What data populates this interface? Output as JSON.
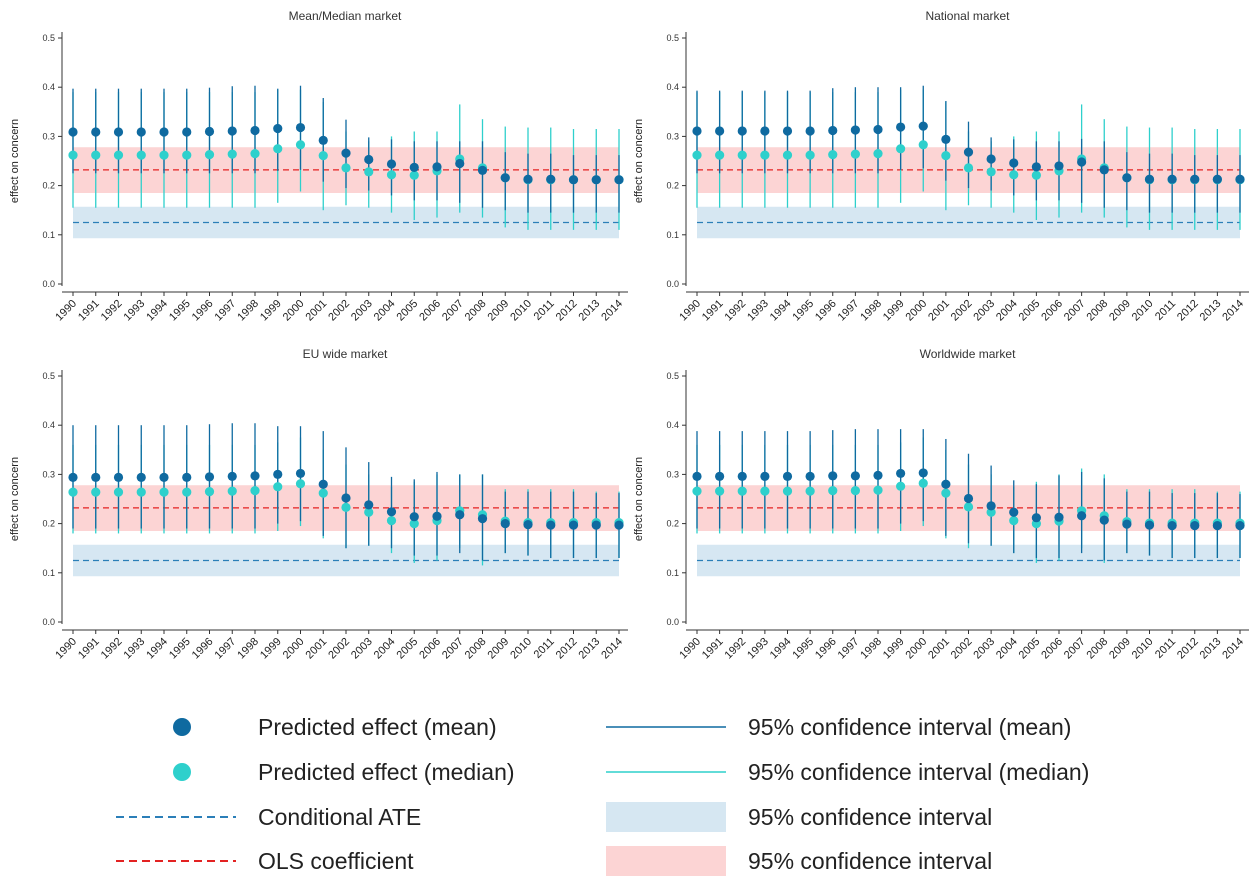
{
  "legend": {
    "mean_point": "Predicted effect (mean)",
    "median_point": "Predicted effect (median)",
    "ate_line": "Conditional ATE",
    "ols_line": "OLS coefficient",
    "ci_mean": "95% confidence interval (mean)",
    "ci_median": "95% confidence interval (median)",
    "ci_ate_band": "95% confidence interval",
    "ci_ols_band": "95% confidence interval"
  },
  "colors": {
    "mean": "#0f6aa0",
    "median": "#2ed0cc",
    "ate": "#2b7fb8",
    "ols": "#e32222",
    "ate_band": "#d6e7f2",
    "ols_band": "#fcd4d4"
  },
  "chart_data": [
    {
      "type": "scatter",
      "title": "Mean/Median market",
      "ylabel": "effect on concern",
      "ylim": [
        0,
        0.5
      ],
      "yticks": [
        0.0,
        0.1,
        0.2,
        0.3,
        0.4,
        0.5
      ],
      "ytick_labels": [
        "0.0",
        "0.1",
        "0.2",
        "0.3",
        "0.4",
        "0.5"
      ],
      "x": [
        "1990",
        "1991",
        "1992",
        "1993",
        "1994",
        "1995",
        "1996",
        "1997",
        "1998",
        "1999",
        "2000",
        "2001",
        "2002",
        "2003",
        "2004",
        "2005",
        "2006",
        "2007",
        "2008",
        "2009",
        "2010",
        "2011",
        "2012",
        "2013",
        "2014"
      ],
      "ate": {
        "value": 0.125,
        "ci": [
          0.093,
          0.157
        ]
      },
      "ols": {
        "value": 0.232,
        "ci": [
          0.185,
          0.278
        ]
      },
      "series": [
        {
          "name": "Predicted effect (mean)",
          "values": [
            0.309,
            0.309,
            0.309,
            0.309,
            0.309,
            0.309,
            0.31,
            0.311,
            0.312,
            0.316,
            0.318,
            0.292,
            0.266,
            0.253,
            0.244,
            0.237,
            0.238,
            0.245,
            0.231,
            0.216,
            0.213,
            0.213,
            0.212,
            0.212,
            0.212
          ],
          "ci_low": [
            0.225,
            0.225,
            0.225,
            0.225,
            0.225,
            0.225,
            0.225,
            0.225,
            0.225,
            0.23,
            0.232,
            0.208,
            0.195,
            0.19,
            0.18,
            0.17,
            0.17,
            0.165,
            0.155,
            0.15,
            0.145,
            0.145,
            0.145,
            0.145,
            0.145
          ],
          "ci_high": [
            0.397,
            0.397,
            0.397,
            0.397,
            0.397,
            0.397,
            0.399,
            0.402,
            0.403,
            0.397,
            0.403,
            0.378,
            0.334,
            0.298,
            0.294,
            0.29,
            0.29,
            0.29,
            0.29,
            0.268,
            0.265,
            0.265,
            0.262,
            0.262,
            0.262
          ]
        },
        {
          "name": "Predicted effect (median)",
          "values": [
            0.262,
            0.262,
            0.262,
            0.262,
            0.262,
            0.262,
            0.263,
            0.264,
            0.265,
            0.275,
            0.283,
            0.261,
            0.236,
            0.228,
            0.222,
            0.221,
            0.23,
            0.254,
            0.236,
            0.216,
            0.212,
            0.212,
            0.212,
            0.212,
            0.212
          ],
          "ci_low": [
            0.155,
            0.155,
            0.155,
            0.155,
            0.155,
            0.155,
            0.155,
            0.155,
            0.155,
            0.165,
            0.188,
            0.15,
            0.16,
            0.155,
            0.145,
            0.13,
            0.135,
            0.145,
            0.135,
            0.115,
            0.11,
            0.11,
            0.11,
            0.11,
            0.11
          ],
          "ci_high": [
            0.39,
            0.39,
            0.39,
            0.39,
            0.39,
            0.39,
            0.39,
            0.39,
            0.39,
            0.395,
            0.395,
            0.37,
            0.31,
            0.29,
            0.3,
            0.31,
            0.31,
            0.365,
            0.335,
            0.32,
            0.318,
            0.318,
            0.315,
            0.315,
            0.315
          ]
        }
      ]
    },
    {
      "type": "scatter",
      "title": "National market",
      "ylabel": "effect on concern",
      "ylim": [
        0,
        0.5
      ],
      "yticks": [
        0.0,
        0.1,
        0.2,
        0.3,
        0.4,
        0.5
      ],
      "ytick_labels": [
        "0.0",
        "0.1",
        "0.2",
        "0.3",
        "0.4",
        "0.5"
      ],
      "x": [
        "1990",
        "1991",
        "1992",
        "1993",
        "1994",
        "1995",
        "1996",
        "1997",
        "1998",
        "1999",
        "2000",
        "2001",
        "2002",
        "2003",
        "2004",
        "2005",
        "2006",
        "2007",
        "2008",
        "2009",
        "2010",
        "2011",
        "2012",
        "2013",
        "2014"
      ],
      "ate": {
        "value": 0.125,
        "ci": [
          0.093,
          0.157
        ]
      },
      "ols": {
        "value": 0.232,
        "ci": [
          0.185,
          0.278
        ]
      },
      "series": [
        {
          "name": "Predicted effect (mean)",
          "values": [
            0.311,
            0.311,
            0.311,
            0.311,
            0.311,
            0.311,
            0.312,
            0.313,
            0.314,
            0.319,
            0.321,
            0.294,
            0.268,
            0.254,
            0.246,
            0.238,
            0.24,
            0.248,
            0.232,
            0.216,
            0.213,
            0.213,
            0.213,
            0.213,
            0.213
          ],
          "ci_low": [
            0.225,
            0.225,
            0.225,
            0.225,
            0.225,
            0.225,
            0.225,
            0.225,
            0.225,
            0.232,
            0.235,
            0.21,
            0.195,
            0.19,
            0.18,
            0.17,
            0.17,
            0.165,
            0.155,
            0.15,
            0.145,
            0.145,
            0.145,
            0.145,
            0.145
          ],
          "ci_high": [
            0.393,
            0.393,
            0.393,
            0.393,
            0.393,
            0.393,
            0.398,
            0.4,
            0.4,
            0.4,
            0.403,
            0.372,
            0.33,
            0.298,
            0.294,
            0.29,
            0.29,
            0.295,
            0.29,
            0.268,
            0.265,
            0.265,
            0.262,
            0.262,
            0.262
          ]
        },
        {
          "name": "Predicted effect (median)",
          "values": [
            0.262,
            0.262,
            0.262,
            0.262,
            0.262,
            0.262,
            0.263,
            0.264,
            0.265,
            0.275,
            0.283,
            0.261,
            0.236,
            0.228,
            0.222,
            0.221,
            0.23,
            0.254,
            0.236,
            0.216,
            0.212,
            0.212,
            0.212,
            0.212,
            0.212
          ],
          "ci_low": [
            0.155,
            0.155,
            0.155,
            0.155,
            0.155,
            0.155,
            0.155,
            0.155,
            0.155,
            0.165,
            0.188,
            0.15,
            0.16,
            0.155,
            0.145,
            0.13,
            0.135,
            0.145,
            0.135,
            0.115,
            0.11,
            0.11,
            0.11,
            0.11,
            0.11
          ],
          "ci_high": [
            0.39,
            0.39,
            0.39,
            0.39,
            0.39,
            0.39,
            0.39,
            0.39,
            0.39,
            0.395,
            0.395,
            0.37,
            0.31,
            0.29,
            0.3,
            0.31,
            0.31,
            0.365,
            0.335,
            0.32,
            0.318,
            0.318,
            0.315,
            0.315,
            0.315
          ]
        }
      ]
    },
    {
      "type": "scatter",
      "title": "EU wide market",
      "ylabel": "effect on concern",
      "ylim": [
        0,
        0.5
      ],
      "yticks": [
        0.0,
        0.1,
        0.2,
        0.3,
        0.4,
        0.5
      ],
      "ytick_labels": [
        "0.0",
        "0.1",
        "0.2",
        "0.3",
        "0.4",
        "0.5"
      ],
      "x": [
        "1990",
        "1991",
        "1992",
        "1993",
        "1994",
        "1995",
        "1996",
        "1997",
        "1998",
        "1999",
        "2000",
        "2001",
        "2002",
        "2003",
        "2004",
        "2005",
        "2006",
        "2007",
        "2008",
        "2009",
        "2010",
        "2011",
        "2012",
        "2013",
        "2014"
      ],
      "ate": {
        "value": 0.125,
        "ci": [
          0.093,
          0.157
        ]
      },
      "ols": {
        "value": 0.232,
        "ci": [
          0.185,
          0.278
        ]
      },
      "series": [
        {
          "name": "Predicted effect (mean)",
          "values": [
            0.294,
            0.294,
            0.294,
            0.294,
            0.294,
            0.294,
            0.295,
            0.296,
            0.297,
            0.3,
            0.302,
            0.28,
            0.252,
            0.238,
            0.224,
            0.214,
            0.215,
            0.218,
            0.21,
            0.2,
            0.198,
            0.197,
            0.197,
            0.197,
            0.197
          ],
          "ci_low": [
            0.19,
            0.19,
            0.19,
            0.19,
            0.19,
            0.19,
            0.19,
            0.19,
            0.19,
            0.2,
            0.205,
            0.175,
            0.15,
            0.155,
            0.15,
            0.135,
            0.135,
            0.14,
            0.125,
            0.14,
            0.135,
            0.13,
            0.13,
            0.13,
            0.13
          ],
          "ci_high": [
            0.4,
            0.4,
            0.4,
            0.4,
            0.4,
            0.4,
            0.402,
            0.404,
            0.404,
            0.398,
            0.398,
            0.388,
            0.355,
            0.325,
            0.295,
            0.29,
            0.305,
            0.3,
            0.3,
            0.265,
            0.265,
            0.265,
            0.265,
            0.262,
            0.262
          ]
        },
        {
          "name": "Predicted effect (median)",
          "values": [
            0.264,
            0.264,
            0.264,
            0.264,
            0.264,
            0.264,
            0.265,
            0.266,
            0.267,
            0.275,
            0.281,
            0.262,
            0.233,
            0.223,
            0.206,
            0.2,
            0.206,
            0.226,
            0.218,
            0.205,
            0.202,
            0.202,
            0.202,
            0.202,
            0.202
          ],
          "ci_low": [
            0.18,
            0.18,
            0.18,
            0.18,
            0.18,
            0.18,
            0.18,
            0.18,
            0.18,
            0.185,
            0.195,
            0.17,
            0.15,
            0.155,
            0.14,
            0.12,
            0.125,
            0.15,
            0.115,
            0.14,
            0.135,
            0.13,
            0.13,
            0.13,
            0.13
          ],
          "ci_high": [
            0.36,
            0.36,
            0.36,
            0.36,
            0.36,
            0.36,
            0.36,
            0.36,
            0.36,
            0.365,
            0.375,
            0.35,
            0.32,
            0.3,
            0.275,
            0.285,
            0.3,
            0.3,
            0.3,
            0.27,
            0.27,
            0.27,
            0.27,
            0.265,
            0.265
          ]
        }
      ]
    },
    {
      "type": "scatter",
      "title": "Worldwide market",
      "ylabel": "effect on concern",
      "ylim": [
        0,
        0.5
      ],
      "yticks": [
        0.0,
        0.1,
        0.2,
        0.3,
        0.4,
        0.5
      ],
      "ytick_labels": [
        "0.0",
        "0.1",
        "0.2",
        "0.3",
        "0.4",
        "0.5"
      ],
      "x": [
        "1990",
        "1991",
        "1992",
        "1993",
        "1994",
        "1995",
        "1996",
        "1997",
        "1998",
        "1999",
        "2000",
        "2001",
        "2002",
        "2003",
        "2004",
        "2005",
        "2006",
        "2007",
        "2008",
        "2009",
        "2010",
        "2011",
        "2012",
        "2013",
        "2014"
      ],
      "ate": {
        "value": 0.125,
        "ci": [
          0.093,
          0.157
        ]
      },
      "ols": {
        "value": 0.232,
        "ci": [
          0.185,
          0.278
        ]
      },
      "series": [
        {
          "name": "Predicted effect (mean)",
          "values": [
            0.296,
            0.296,
            0.296,
            0.296,
            0.296,
            0.296,
            0.297,
            0.297,
            0.298,
            0.302,
            0.303,
            0.28,
            0.251,
            0.236,
            0.223,
            0.212,
            0.213,
            0.216,
            0.207,
            0.199,
            0.197,
            0.196,
            0.196,
            0.196,
            0.196
          ],
          "ci_low": [
            0.19,
            0.19,
            0.19,
            0.19,
            0.19,
            0.19,
            0.19,
            0.19,
            0.19,
            0.2,
            0.205,
            0.175,
            0.16,
            0.155,
            0.14,
            0.13,
            0.13,
            0.14,
            0.125,
            0.14,
            0.135,
            0.13,
            0.13,
            0.13,
            0.13
          ],
          "ci_high": [
            0.388,
            0.388,
            0.388,
            0.388,
            0.388,
            0.388,
            0.39,
            0.392,
            0.392,
            0.392,
            0.392,
            0.372,
            0.342,
            0.318,
            0.288,
            0.28,
            0.298,
            0.305,
            0.292,
            0.265,
            0.265,
            0.262,
            0.262,
            0.262,
            0.26
          ]
        },
        {
          "name": "Predicted effect (median)",
          "values": [
            0.266,
            0.266,
            0.266,
            0.266,
            0.266,
            0.266,
            0.267,
            0.267,
            0.268,
            0.276,
            0.282,
            0.262,
            0.234,
            0.223,
            0.206,
            0.2,
            0.205,
            0.226,
            0.216,
            0.204,
            0.201,
            0.201,
            0.201,
            0.201,
            0.201
          ],
          "ci_low": [
            0.18,
            0.18,
            0.18,
            0.18,
            0.18,
            0.18,
            0.18,
            0.18,
            0.18,
            0.185,
            0.195,
            0.17,
            0.15,
            0.155,
            0.14,
            0.12,
            0.125,
            0.15,
            0.12,
            0.14,
            0.135,
            0.13,
            0.13,
            0.13,
            0.13
          ],
          "ci_high": [
            0.36,
            0.36,
            0.36,
            0.36,
            0.36,
            0.36,
            0.36,
            0.36,
            0.36,
            0.365,
            0.375,
            0.35,
            0.32,
            0.3,
            0.275,
            0.285,
            0.3,
            0.312,
            0.3,
            0.27,
            0.27,
            0.27,
            0.27,
            0.265,
            0.265
          ]
        }
      ]
    }
  ]
}
